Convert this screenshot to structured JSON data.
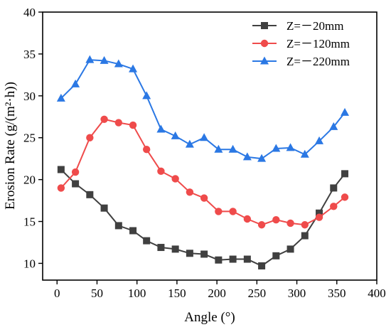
{
  "chart_data": {
    "type": "line",
    "xlabel": "Angle (°)",
    "ylabel": "Erosion Rate (g/(m²·h))",
    "xlim": [
      -18,
      400
    ],
    "ylim": [
      8,
      40
    ],
    "xticks": [
      0,
      50,
      100,
      150,
      200,
      250,
      300,
      350,
      400
    ],
    "yticks": [
      10,
      15,
      20,
      25,
      30,
      35,
      40
    ],
    "x": [
      5,
      23,
      41,
      59,
      77,
      95,
      112,
      130,
      148,
      166,
      184,
      202,
      220,
      238,
      256,
      274,
      292,
      310,
      328,
      346,
      360
    ],
    "series": [
      {
        "name": "Z=－20mm",
        "color": "#404040",
        "marker": "square",
        "values": [
          21.2,
          19.5,
          18.2,
          16.6,
          14.5,
          13.9,
          12.7,
          11.9,
          11.7,
          11.2,
          11.1,
          10.4,
          10.5,
          10.5,
          9.7,
          10.9,
          11.7,
          13.3,
          16.0,
          19.0,
          20.7
        ]
      },
      {
        "name": "Z=－120mm",
        "color": "#ef4b4b",
        "marker": "circle",
        "values": [
          19.0,
          20.9,
          25.0,
          27.2,
          26.8,
          26.5,
          23.6,
          21.0,
          20.1,
          18.5,
          17.8,
          16.2,
          16.2,
          15.3,
          14.6,
          15.2,
          14.8,
          14.6,
          15.5,
          16.8,
          17.9
        ]
      },
      {
        "name": "Z=－220mm",
        "color": "#2b78e4",
        "marker": "triangle",
        "values": [
          29.7,
          31.4,
          34.3,
          34.2,
          33.8,
          33.2,
          30.0,
          26.0,
          25.2,
          24.2,
          25.0,
          23.6,
          23.6,
          22.7,
          22.5,
          23.7,
          23.8,
          23.0,
          24.6,
          26.3,
          28.0
        ]
      }
    ],
    "legend_position": "top-right",
    "grid": false
  }
}
